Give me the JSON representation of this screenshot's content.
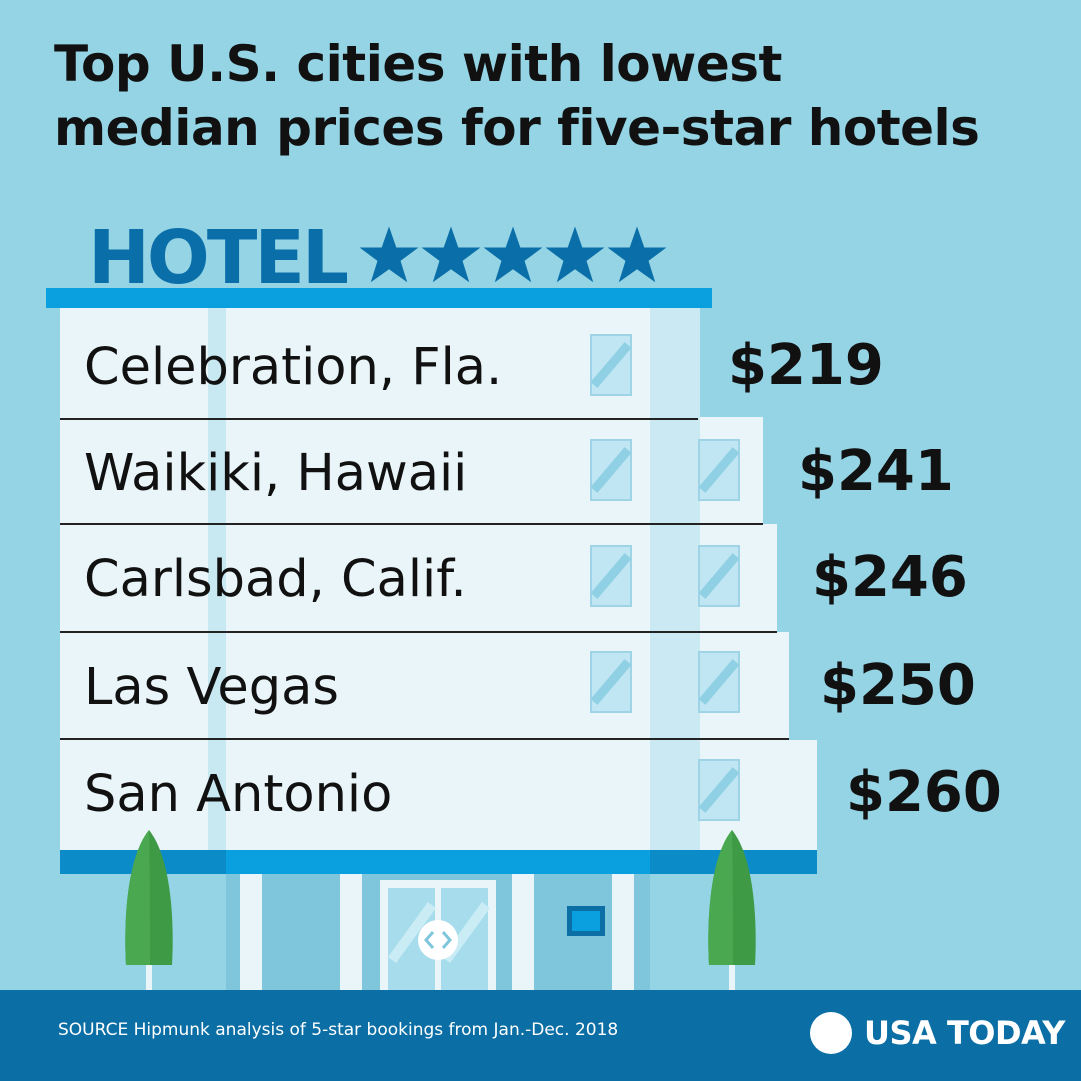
{
  "title": {
    "line1": "Top U.S. cities with lowest",
    "line2": "median prices for five-star hotels"
  },
  "sign": {
    "word": "HOTEL",
    "star_count": 5,
    "color": "#0a6fa8"
  },
  "chart_data": {
    "type": "table",
    "title": "Top U.S. cities with lowest median prices for five-star hotels",
    "categories": [
      "Celebration, Fla.",
      "Waikiki, Hawaii",
      "Carlsbad, Calif.",
      "Las Vegas",
      "San Antonio"
    ],
    "values": [
      219,
      241,
      246,
      250,
      260
    ],
    "value_labels": [
      "$219",
      "$241",
      "$246",
      "$250",
      "$260"
    ]
  },
  "footer": {
    "source": "SOURCE Hipmunk analysis of 5-star bookings from Jan.-Dec. 2018",
    "brand": "USA TODAY"
  },
  "colors": {
    "background": "#94d4e5",
    "building": "#e9f5f9",
    "building_shade": "#c8e8f2",
    "accent_blue": "#0aa0e0",
    "dark_blue": "#0b6ea5",
    "tree": "#3f9a46"
  }
}
